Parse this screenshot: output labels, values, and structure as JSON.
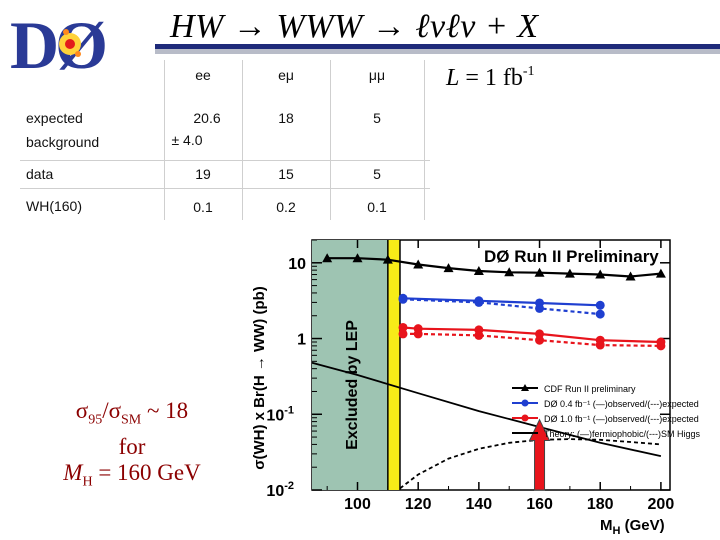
{
  "header": {
    "logo_text": "DØ",
    "title": "HW → WWW → ℓνℓν + X",
    "colors": {
      "rule_blue": "#1e2a7a",
      "rule_gray": "#b8bcc8"
    }
  },
  "luminosity": {
    "label": "L",
    "equals": "= 1 fb",
    "exponent": "-1"
  },
  "yield_table": {
    "columns": [
      "ee",
      "eμ",
      "μμ"
    ],
    "rows": [
      {
        "label_line1": "expected",
        "label_line2": "background",
        "values": [
          "20.6",
          "18",
          "5"
        ],
        "ee_error": "± 4.0"
      },
      {
        "label_line1": "data",
        "values": [
          "19",
          "15",
          "5"
        ]
      },
      {
        "label_line1": "WH(160)",
        "values": [
          "0.1",
          "0.2",
          "0.1"
        ]
      }
    ]
  },
  "sigma_ratio": {
    "line1": "σ95/σSM ~ 18",
    "sub1": "95",
    "sub2": "SM",
    "approx": "~ 18",
    "line2": "for",
    "line3_prefix": "M",
    "line3_sub": "H",
    "line3_suffix": " = 160 GeV"
  },
  "chart_data": {
    "type": "line",
    "title": "DØ Run II Preliminary",
    "xlabel": "M",
    "xlabel_sub": "H",
    "xlabel_unit": " (GeV)",
    "ylabel": "σ(WH) x Br(H → WW) (pb)",
    "yscale": "log",
    "xlim": [
      85,
      203
    ],
    "ylim": [
      0.01,
      20
    ],
    "x_ticks": [
      100,
      120,
      140,
      160,
      180,
      200
    ],
    "y_ticks": [
      {
        "value": 10,
        "label": "10"
      },
      {
        "value": 1,
        "label": "1"
      },
      {
        "value": 0.1,
        "label": "10",
        "exp": "-1"
      },
      {
        "value": 0.01,
        "label": "10",
        "exp": "-2"
      }
    ],
    "excluded_band": {
      "x_from": 85,
      "x_to": 110,
      "label": "Excluded by LEP"
    },
    "lep_line_x": 114,
    "arrow_x": 160,
    "series": [
      {
        "name": "CDF Run II preliminary",
        "color": "#000000",
        "marker": "triangle",
        "dash": false,
        "x": [
          90,
          100,
          110,
          120,
          130,
          140,
          150,
          160,
          170,
          180,
          190,
          200
        ],
        "y": [
          11.5,
          11.5,
          11,
          9.5,
          8.5,
          7.8,
          7.5,
          7.4,
          7.2,
          7.0,
          6.6,
          7.2
        ]
      },
      {
        "name": "DØ 0.4 fb⁻¹ (—)observed/(---)expected",
        "color": "#1f3fd0",
        "marker": "circle",
        "dash": false,
        "x": [
          115,
          140,
          160,
          180
        ],
        "y": [
          3.4,
          3.15,
          2.95,
          2.75
        ]
      },
      {
        "name": "DØ 0.4 fb⁻¹ expected",
        "color": "#1f3fd0",
        "marker": "circle",
        "dash": true,
        "legend": false,
        "x": [
          115,
          140,
          160,
          180
        ],
        "y": [
          3.3,
          3.0,
          2.5,
          2.1
        ]
      },
      {
        "name": "DØ 1.0 fb⁻¹ (—)observed/(---)expected",
        "color": "#e8141c",
        "marker": "circle",
        "dash": false,
        "x": [
          115,
          120,
          140,
          160,
          180,
          200
        ],
        "y": [
          1.4,
          1.35,
          1.3,
          1.15,
          0.95,
          0.9
        ]
      },
      {
        "name": "DØ 1.0 fb⁻¹ expected",
        "color": "#e8141c",
        "marker": "circle",
        "dash": true,
        "legend": false,
        "x": [
          115,
          120,
          140,
          160,
          180,
          200
        ],
        "y": [
          1.15,
          1.15,
          1.1,
          0.95,
          0.82,
          0.8
        ]
      },
      {
        "name": "Theory: (—)fermiophobic/(---)SM Higgs",
        "color": "#000000",
        "marker": "none",
        "dash": false,
        "x": [
          85,
          100,
          120,
          140,
          160,
          180,
          200
        ],
        "y": [
          0.48,
          0.33,
          0.19,
          0.11,
          0.068,
          0.042,
          0.028
        ]
      },
      {
        "name": "SM Higgs",
        "color": "#000000",
        "marker": "none",
        "dash": true,
        "legend": false,
        "x": [
          114,
          120,
          130,
          140,
          150,
          160,
          170,
          180,
          190,
          200
        ],
        "y": [
          0.0105,
          0.016,
          0.026,
          0.035,
          0.042,
          0.046,
          0.047,
          0.046,
          0.043,
          0.04
        ]
      }
    ]
  }
}
